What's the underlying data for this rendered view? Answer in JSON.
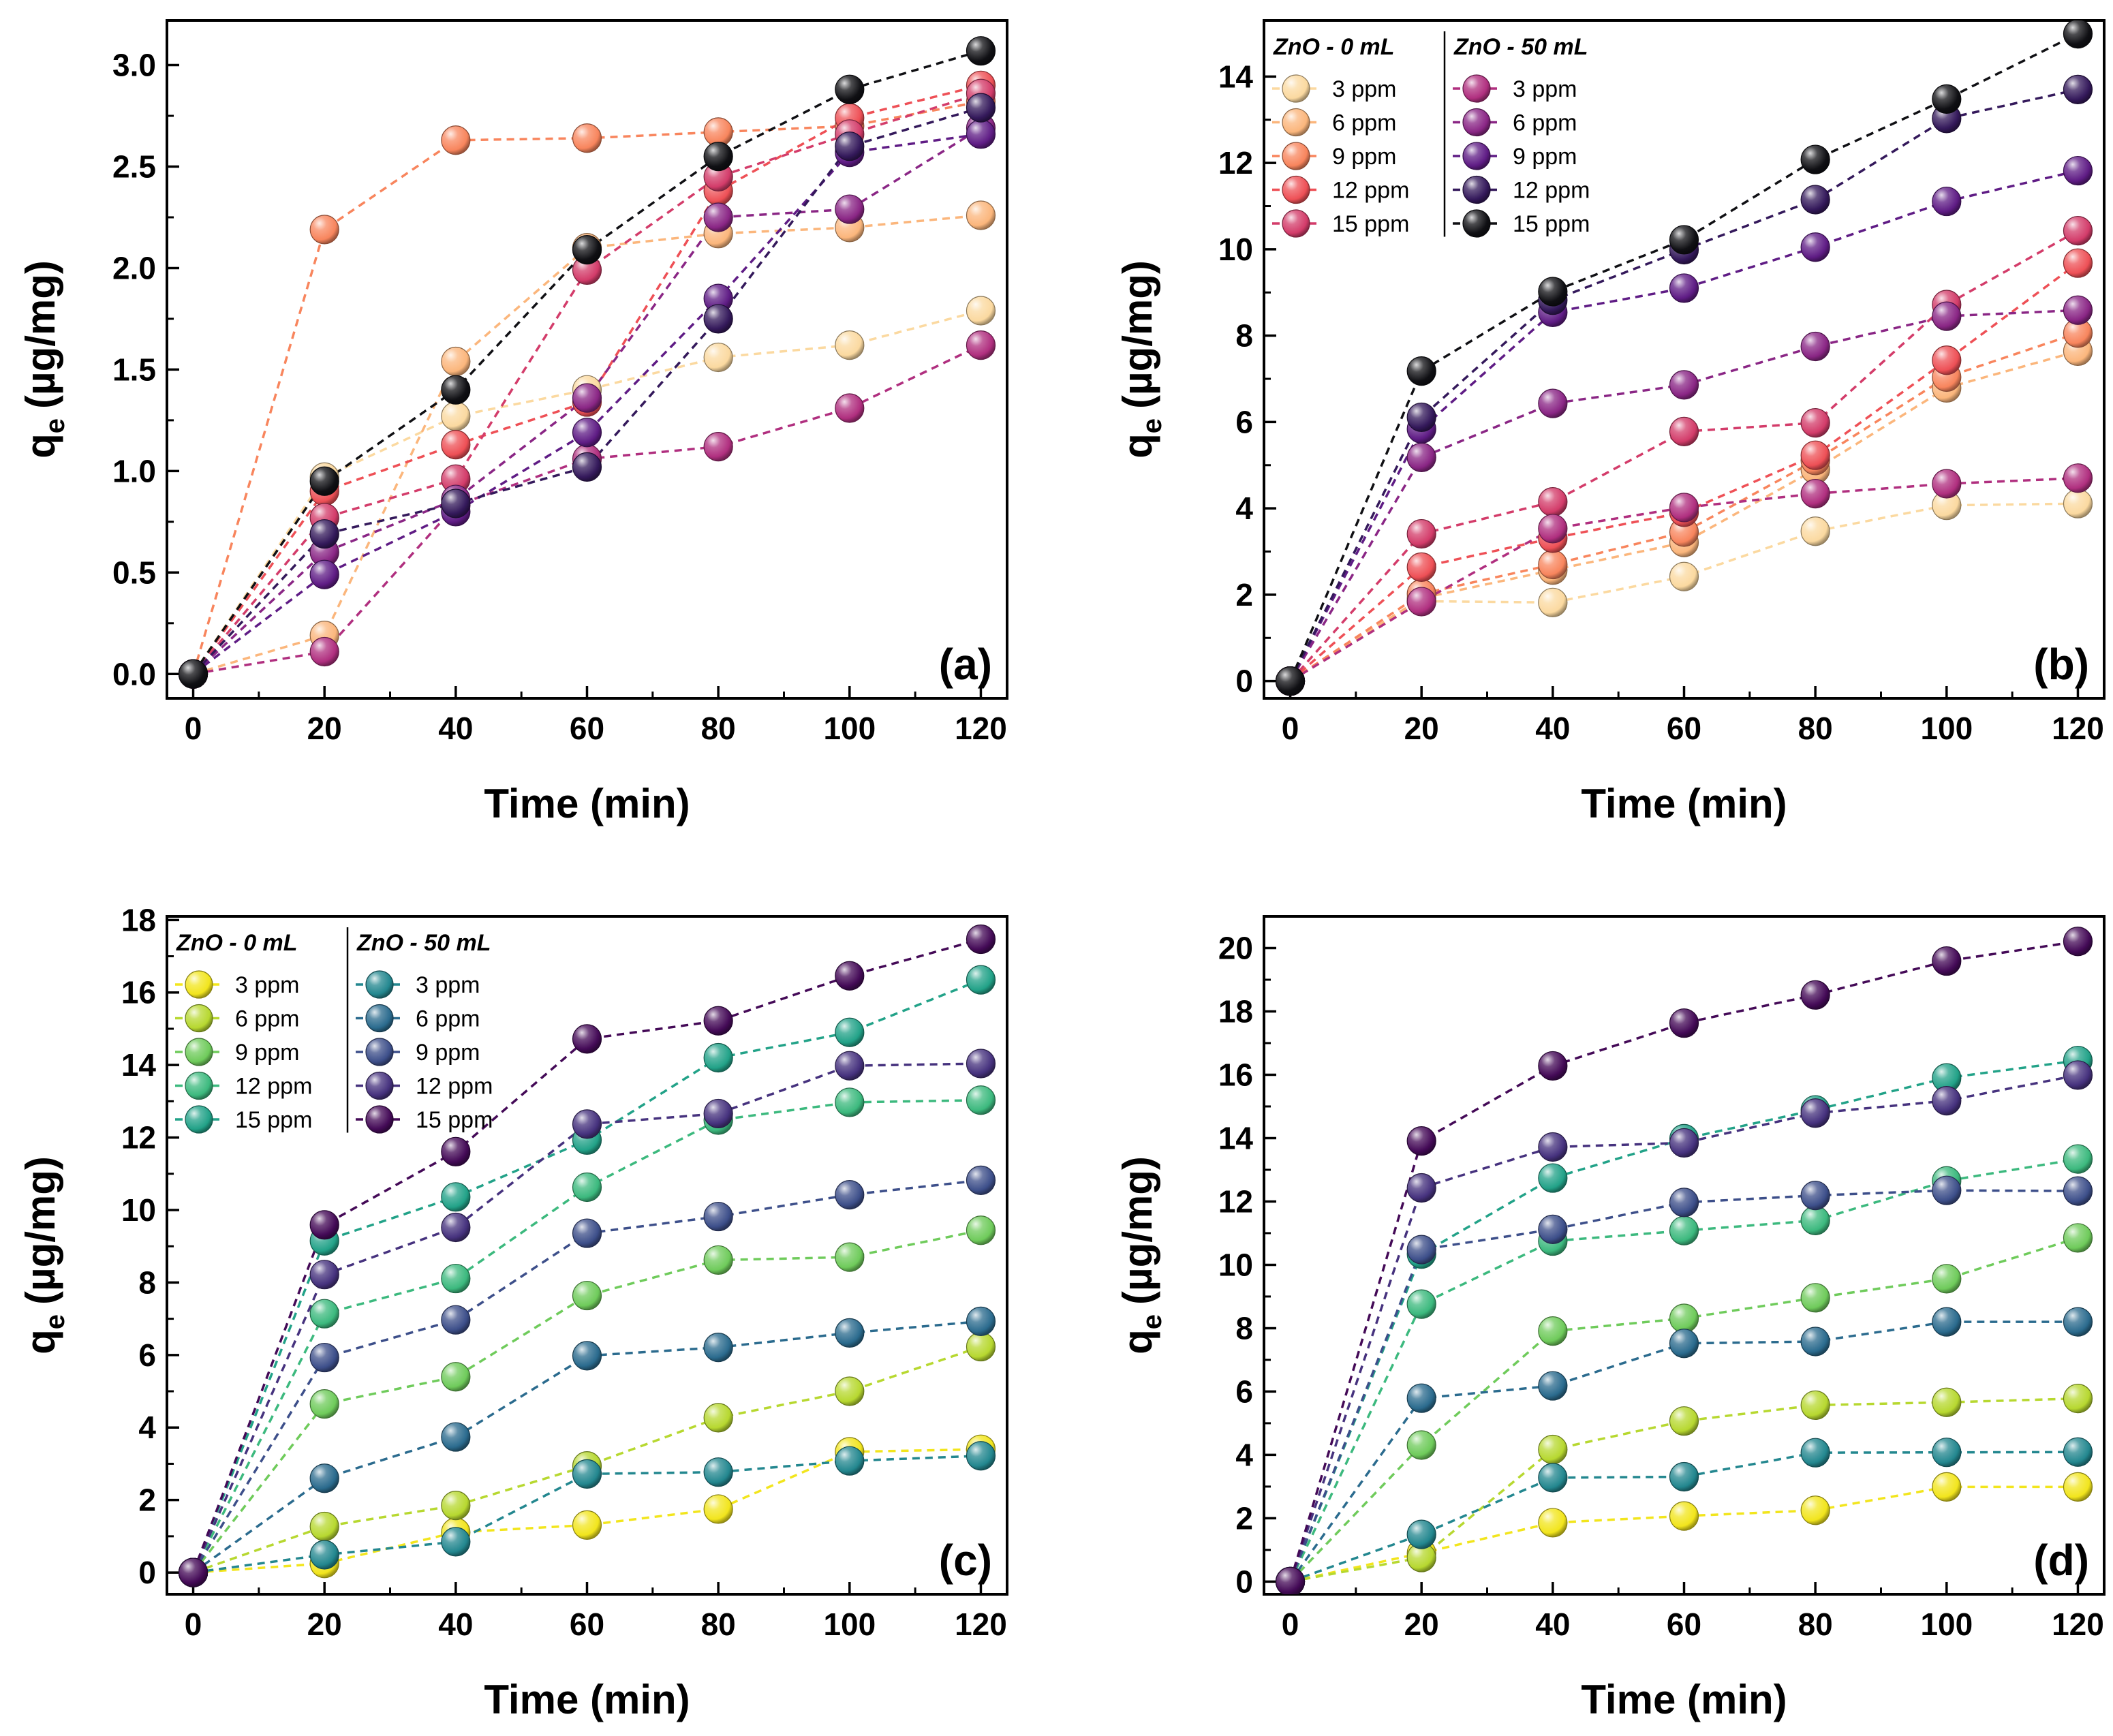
{
  "chart_data": [
    {
      "panel": "(a)",
      "type": "line",
      "xlabel": "Time (min)",
      "ylabel_main": "q",
      "ylabel_sub": "e",
      "ylabel_unit": "(µg/mg)",
      "xlim": [
        -4,
        124
      ],
      "ylim": [
        -0.12,
        3.22
      ],
      "xticks": [
        0,
        20,
        40,
        60,
        80,
        100,
        120
      ],
      "yticks": [
        0.0,
        0.5,
        1.0,
        1.5,
        2.0,
        2.5,
        3.0
      ],
      "ytick_labels": [
        "0.0",
        "0.5",
        "1.0",
        "1.5",
        "2.0",
        "2.5",
        "3.0"
      ],
      "x": [
        0,
        20,
        40,
        60,
        80,
        100,
        120
      ],
      "legend": null,
      "series": [
        {
          "name": "ZnO - 0 mL, 3 ppm",
          "color": "#fbd9a0",
          "values": [
            0,
            0.97,
            1.27,
            1.4,
            1.56,
            1.62,
            1.79
          ]
        },
        {
          "name": "ZnO - 0 mL, 6 ppm",
          "color": "#fbb67c",
          "values": [
            0,
            0.19,
            1.54,
            2.1,
            2.17,
            2.2,
            2.26
          ]
        },
        {
          "name": "ZnO - 0 mL, 9 ppm",
          "color": "#f8855d",
          "values": [
            0,
            2.19,
            2.63,
            2.64,
            2.67,
            2.7,
            2.82
          ]
        },
        {
          "name": "ZnO - 0 mL, 12 ppm",
          "color": "#ee5056",
          "values": [
            0,
            0.9,
            1.13,
            1.34,
            2.38,
            2.74,
            2.9
          ]
        },
        {
          "name": "ZnO - 0 mL, 15 ppm",
          "color": "#d33c6a",
          "values": [
            0,
            0.77,
            0.96,
            1.99,
            2.45,
            2.66,
            2.86
          ]
        },
        {
          "name": "ZnO - 50 mL, 3 ppm",
          "color": "#b02f7f",
          "values": [
            0,
            0.11,
            0.83,
            1.06,
            1.12,
            1.31,
            1.62
          ]
        },
        {
          "name": "ZnO - 50 mL, 6 ppm",
          "color": "#8a2685",
          "values": [
            0,
            0.6,
            0.86,
            1.36,
            2.25,
            2.29,
            2.69
          ]
        },
        {
          "name": "ZnO - 50 mL, 9 ppm",
          "color": "#5f1c85",
          "values": [
            0,
            0.49,
            0.8,
            1.19,
            1.85,
            2.57,
            2.66
          ]
        },
        {
          "name": "ZnO - 50 mL, 12 ppm",
          "color": "#34195b",
          "values": [
            0,
            0.69,
            0.84,
            1.02,
            1.75,
            2.6,
            2.79
          ]
        },
        {
          "name": "ZnO - 50 mL, 15 ppm",
          "color": "#101014",
          "values": [
            0,
            0.95,
            1.4,
            2.09,
            2.55,
            2.88,
            3.07
          ]
        }
      ]
    },
    {
      "panel": "(b)",
      "type": "line",
      "xlabel": "Time (min)",
      "ylabel_main": "q",
      "ylabel_sub": "e",
      "ylabel_unit": "(µg/mg)",
      "xlim": [
        -4,
        124
      ],
      "ylim": [
        -0.4,
        15.3
      ],
      "xticks": [
        0,
        20,
        40,
        60,
        80,
        100,
        120
      ],
      "yticks": [
        0,
        2,
        4,
        6,
        8,
        10,
        12,
        14
      ],
      "ytick_labels": [
        "0",
        "2",
        "4",
        "6",
        "8",
        "10",
        "12",
        "14"
      ],
      "x": [
        0,
        20,
        40,
        60,
        80,
        100,
        120
      ],
      "legend": {
        "placement": "top-left",
        "group_titles": [
          "ZnO - 0 mL",
          "ZnO - 50 mL"
        ],
        "labels": [
          "3 ppm",
          "6 ppm",
          "9 ppm",
          "12 ppm",
          "15 ppm"
        ]
      },
      "series": [
        {
          "name": "ZnO - 0 mL, 3 ppm",
          "color": "#fbd9a0",
          "values": [
            0,
            1.85,
            1.82,
            2.42,
            3.47,
            4.07,
            4.11
          ]
        },
        {
          "name": "ZnO - 0 mL, 6 ppm",
          "color": "#fbb67c",
          "values": [
            0,
            1.92,
            2.57,
            3.21,
            4.9,
            6.79,
            7.64
          ]
        },
        {
          "name": "ZnO - 0 mL, 9 ppm",
          "color": "#f8855d",
          "values": [
            0,
            2.02,
            2.7,
            3.45,
            5.11,
            7.04,
            8.06
          ]
        },
        {
          "name": "ZnO - 0 mL, 12 ppm",
          "color": "#ee5056",
          "values": [
            0,
            2.64,
            3.31,
            3.91,
            5.23,
            7.43,
            9.68
          ]
        },
        {
          "name": "ZnO - 0 mL, 15 ppm",
          "color": "#d33c6a",
          "values": [
            0,
            3.41,
            4.15,
            5.78,
            5.98,
            8.72,
            10.43
          ]
        },
        {
          "name": "ZnO - 50 mL, 3 ppm",
          "color": "#b02f7f",
          "values": [
            0,
            1.84,
            3.53,
            4.02,
            4.34,
            4.57,
            4.7
          ]
        },
        {
          "name": "ZnO - 50 mL, 6 ppm",
          "color": "#8a2685",
          "values": [
            0,
            5.18,
            6.43,
            6.86,
            7.75,
            8.45,
            8.59
          ]
        },
        {
          "name": "ZnO - 50 mL, 9 ppm",
          "color": "#5f1c85",
          "values": [
            0,
            5.84,
            8.54,
            9.1,
            10.05,
            11.11,
            11.82
          ]
        },
        {
          "name": "ZnO - 50 mL, 12 ppm",
          "color": "#34195b",
          "values": [
            0,
            6.11,
            8.82,
            9.99,
            11.15,
            13.03,
            13.7
          ]
        },
        {
          "name": "ZnO - 50 mL, 15 ppm",
          "color": "#101014",
          "values": [
            0,
            7.18,
            9.02,
            10.22,
            12.08,
            13.48,
            14.99
          ]
        }
      ]
    },
    {
      "panel": "(c)",
      "type": "line",
      "xlabel": "Time (min)",
      "ylabel_main": "q",
      "ylabel_sub": "e",
      "ylabel_unit": "(µg/mg)",
      "xlim": [
        -4,
        124
      ],
      "ylim": [
        -0.6,
        18.1
      ],
      "xticks": [
        0,
        20,
        40,
        60,
        80,
        100,
        120
      ],
      "yticks": [
        0,
        2,
        4,
        6,
        8,
        10,
        12,
        14,
        16,
        18
      ],
      "ytick_labels": [
        "0",
        "2",
        "4",
        "6",
        "8",
        "10",
        "12",
        "14",
        "16",
        "18"
      ],
      "x": [
        0,
        20,
        40,
        60,
        80,
        100,
        120
      ],
      "legend": {
        "placement": "top-left",
        "group_titles": [
          "ZnO - 0 mL",
          "ZnO - 50 mL"
        ],
        "labels": [
          "3 ppm",
          "6 ppm",
          "9 ppm",
          "12 ppm",
          "15 ppm"
        ]
      },
      "series": [
        {
          "name": "ZnO - 0 mL, 3 ppm",
          "color": "#f2e51d",
          "values": [
            0,
            0.25,
            1.11,
            1.31,
            1.75,
            3.33,
            3.4
          ]
        },
        {
          "name": "ZnO - 0 mL, 6 ppm",
          "color": "#b7d830",
          "values": [
            0,
            1.27,
            1.85,
            2.94,
            4.27,
            5.0,
            6.23
          ]
        },
        {
          "name": "ZnO - 0 mL, 9 ppm",
          "color": "#6fcb5b",
          "values": [
            0,
            4.65,
            5.4,
            7.64,
            8.62,
            8.7,
            9.44
          ]
        },
        {
          "name": "ZnO - 0 mL, 12 ppm",
          "color": "#3cb97e",
          "values": [
            0,
            7.14,
            8.11,
            10.63,
            12.48,
            12.97,
            13.03
          ]
        },
        {
          "name": "ZnO - 0 mL, 15 ppm",
          "color": "#22a288",
          "values": [
            0,
            9.15,
            10.36,
            11.93,
            14.2,
            14.9,
            16.35
          ]
        },
        {
          "name": "ZnO - 50 mL, 3 ppm",
          "color": "#23878f",
          "values": [
            0,
            0.49,
            0.85,
            2.72,
            2.77,
            3.08,
            3.22
          ]
        },
        {
          "name": "ZnO - 50 mL, 6 ppm",
          "color": "#2b6b8e",
          "values": [
            0,
            2.6,
            3.74,
            5.98,
            6.21,
            6.61,
            6.93
          ]
        },
        {
          "name": "ZnO - 50 mL, 9 ppm",
          "color": "#3d4f8a",
          "values": [
            0,
            5.93,
            6.97,
            9.36,
            9.82,
            10.42,
            10.82
          ]
        },
        {
          "name": "ZnO - 50 mL, 12 ppm",
          "color": "#46327e",
          "values": [
            0,
            8.22,
            9.52,
            12.37,
            12.66,
            13.98,
            14.04
          ]
        },
        {
          "name": "ZnO - 50 mL, 15 ppm",
          "color": "#440a57",
          "values": [
            0,
            9.59,
            11.61,
            14.72,
            15.22,
            16.46,
            17.47
          ]
        }
      ]
    },
    {
      "panel": "(d)",
      "type": "line",
      "xlabel": "Time (min)",
      "ylabel_main": "q",
      "ylabel_sub": "e",
      "ylabel_unit": "(µg/mg)",
      "xlim": [
        -4,
        124
      ],
      "ylim": [
        -0.4,
        21.0
      ],
      "xticks": [
        0,
        20,
        40,
        60,
        80,
        100,
        120
      ],
      "yticks": [
        0,
        2,
        4,
        6,
        8,
        10,
        12,
        14,
        16,
        18,
        20
      ],
      "ytick_labels": [
        "0",
        "2",
        "4",
        "6",
        "8",
        "10",
        "12",
        "14",
        "16",
        "18",
        "20"
      ],
      "x": [
        0,
        20,
        40,
        60,
        80,
        100,
        120
      ],
      "legend": null,
      "series": [
        {
          "name": "ZnO - 0 mL, 3 ppm",
          "color": "#f2e51d",
          "values": [
            0,
            0.9,
            1.86,
            2.07,
            2.25,
            2.99,
            2.99
          ]
        },
        {
          "name": "ZnO - 0 mL, 6 ppm",
          "color": "#b7d830",
          "values": [
            0,
            0.76,
            4.17,
            5.07,
            5.57,
            5.66,
            5.78
          ]
        },
        {
          "name": "ZnO - 0 mL, 9 ppm",
          "color": "#6fcb5b",
          "values": [
            0,
            4.31,
            7.91,
            8.31,
            8.96,
            9.56,
            10.85
          ]
        },
        {
          "name": "ZnO - 0 mL, 12 ppm",
          "color": "#3cb97e",
          "values": [
            0,
            8.76,
            10.75,
            11.08,
            11.4,
            12.65,
            13.34
          ]
        },
        {
          "name": "ZnO - 0 mL, 15 ppm",
          "color": "#22a288",
          "values": [
            0,
            10.34,
            12.74,
            13.98,
            14.89,
            15.9,
            16.45
          ]
        },
        {
          "name": "ZnO - 50 mL, 3 ppm",
          "color": "#23878f",
          "values": [
            0,
            1.49,
            3.28,
            3.31,
            4.07,
            4.08,
            4.09
          ]
        },
        {
          "name": "ZnO - 50 mL, 6 ppm",
          "color": "#2b6b8e",
          "values": [
            0,
            5.79,
            6.18,
            7.52,
            7.58,
            8.2,
            8.2
          ]
        },
        {
          "name": "ZnO - 50 mL, 9 ppm",
          "color": "#3d4f8a",
          "values": [
            0,
            10.48,
            11.12,
            11.97,
            12.19,
            12.35,
            12.33
          ]
        },
        {
          "name": "ZnO - 50 mL, 12 ppm",
          "color": "#46327e",
          "values": [
            0,
            12.43,
            13.72,
            13.85,
            14.79,
            15.18,
            15.99
          ]
        },
        {
          "name": "ZnO - 50 mL, 15 ppm",
          "color": "#440a57",
          "values": [
            0,
            13.91,
            16.28,
            17.63,
            18.52,
            19.59,
            20.21
          ]
        }
      ]
    }
  ]
}
